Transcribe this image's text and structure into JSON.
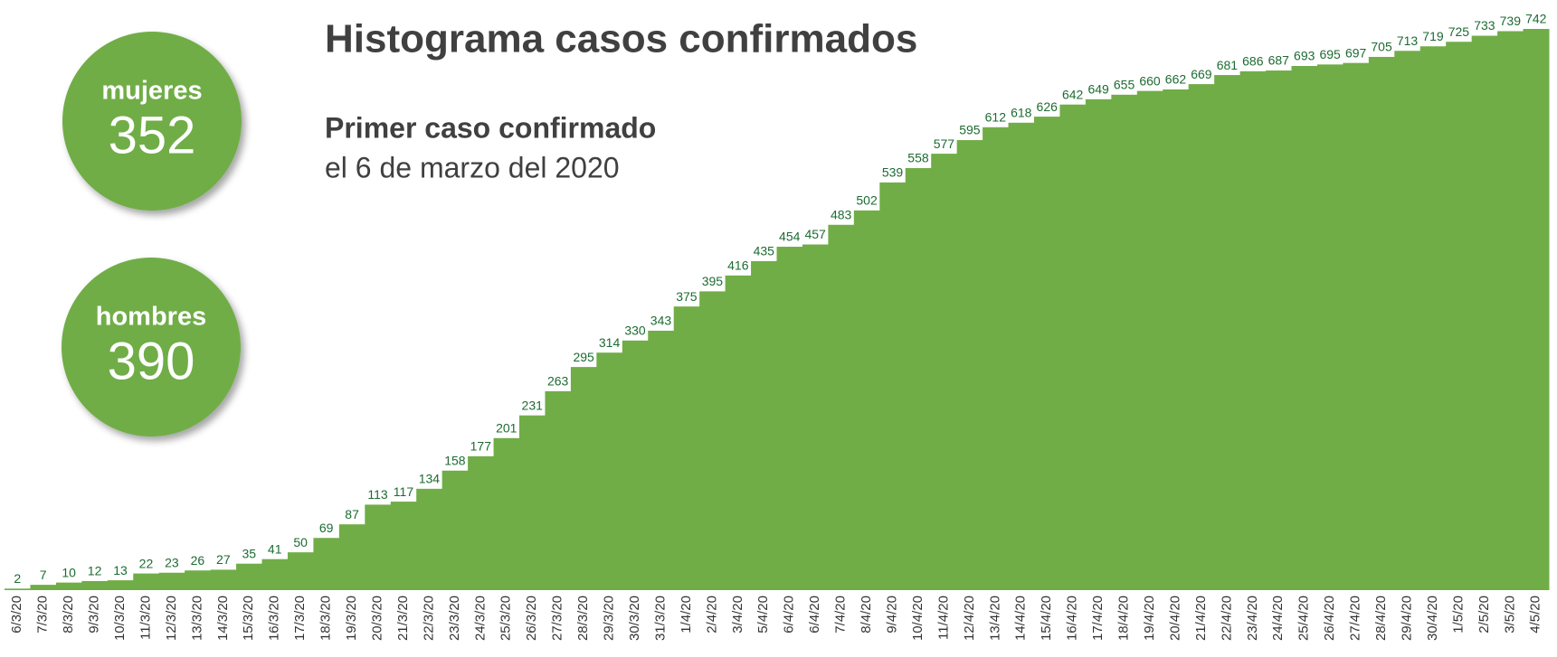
{
  "chart_data": {
    "type": "bar",
    "title": "Histograma casos confirmados",
    "subtitle": "Primer caso confirmado",
    "subtitle_detail": "el 6 de marzo del 2020",
    "color": "#70ad47",
    "label_color": "#1d6b32",
    "categories": [
      "6/3/20",
      "7/3/20",
      "8/3/20",
      "9/3/20",
      "10/3/20",
      "11/3/20",
      "12/3/20",
      "13/3/20",
      "14/3/20",
      "15/3/20",
      "16/3/20",
      "17/3/20",
      "18/3/20",
      "19/3/20",
      "20/3/20",
      "21/3/20",
      "22/3/20",
      "23/3/20",
      "24/3/20",
      "25/3/20",
      "26/3/20",
      "27/3/20",
      "28/3/20",
      "29/3/20",
      "30/3/20",
      "31/3/20",
      "1/4/20",
      "2/4/20",
      "3/4/20",
      "5/4/20",
      "6/4/20",
      "6/4/20",
      "7/4/20",
      "8/4/20",
      "9/4/20",
      "10/4/20",
      "11/4/20",
      "12/4/20",
      "13/4/20",
      "14/4/20",
      "15/4/20",
      "16/4/20",
      "17/4/20",
      "18/4/20",
      "19/4/20",
      "20/4/20",
      "21/4/20",
      "22/4/20",
      "23/4/20",
      "24/4/20",
      "25/4/20",
      "26/4/20",
      "27/4/20",
      "28/4/20",
      "29/4/20",
      "30/4/20",
      "1/5/20",
      "2/5/20",
      "3/5/20",
      "4/5/20"
    ],
    "values": [
      2,
      7,
      10,
      12,
      13,
      22,
      23,
      26,
      27,
      35,
      41,
      50,
      69,
      87,
      113,
      117,
      134,
      158,
      177,
      201,
      231,
      263,
      295,
      314,
      330,
      343,
      375,
      395,
      416,
      435,
      454,
      457,
      483,
      502,
      539,
      558,
      577,
      595,
      612,
      618,
      626,
      642,
      649,
      655,
      660,
      662,
      669,
      681,
      686,
      687,
      693,
      695,
      697,
      705,
      713,
      719,
      725,
      733,
      739,
      742
    ]
  },
  "stats": [
    {
      "label": "mujeres",
      "value": 352
    },
    {
      "label": "hombres",
      "value": 390
    }
  ]
}
